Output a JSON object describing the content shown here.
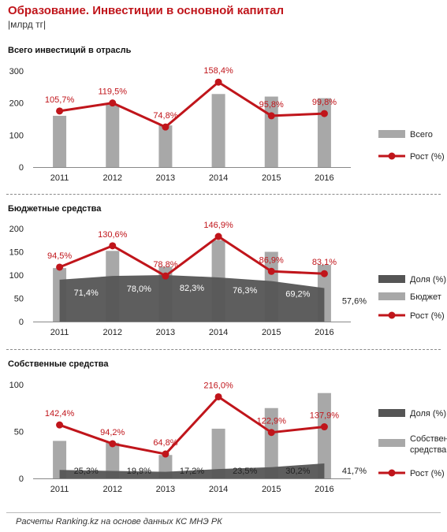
{
  "header": {
    "title": "Образование. Инвестиции в основной капитал",
    "unit": "|млрд тг|"
  },
  "source": "Расчеты Ranking.kz на основе данных КС МНЭ РК",
  "colors": {
    "bar": "#a8a8a8",
    "share_area": "#555555",
    "growth_line": "#c0151b"
  },
  "chart_data": [
    {
      "type": "bar",
      "title": "Всего инвестиций в отрасль",
      "categories": [
        "2011",
        "2012",
        "2013",
        "2014",
        "2015",
        "2016"
      ],
      "ylim": [
        0,
        300
      ],
      "yticks": [
        "0",
        "100",
        "200",
        "300"
      ],
      "series": [
        {
          "name": "Всего",
          "type": "bar",
          "values": [
            160,
            195,
            130,
            228,
            220,
            215
          ]
        },
        {
          "name": "Рост (%)",
          "type": "line",
          "values": [
            175,
            200,
            125,
            265,
            160,
            167
          ],
          "labels": [
            "105,7%",
            "119,5%",
            "74,8%",
            "158,4%",
            "95,8%",
            "99,8%"
          ]
        }
      ]
    },
    {
      "type": "bar",
      "title": "Бюджетные средства",
      "categories": [
        "2011",
        "2012",
        "2013",
        "2014",
        "2015",
        "2016"
      ],
      "ylim": [
        0,
        200
      ],
      "yticks": [
        "0",
        "50",
        "100",
        "150",
        "200"
      ],
      "series": [
        {
          "name": "Доля (%)",
          "type": "area",
          "values": [
            90,
            98,
            100,
            95,
            87,
            72
          ],
          "labels": [
            "71,4%",
            "78,0%",
            "82,3%",
            "76,3%",
            "69,2%",
            "57,6%"
          ]
        },
        {
          "name": "Бюджет",
          "type": "bar",
          "values": [
            115,
            152,
            118,
            175,
            150,
            122
          ]
        },
        {
          "name": "Рост (%)",
          "type": "line",
          "values": [
            117,
            163,
            98,
            183,
            108,
            103
          ],
          "labels": [
            "94,5%",
            "130,6%",
            "78,8%",
            "146,9%",
            "86,9%",
            "83,1%"
          ]
        }
      ]
    },
    {
      "type": "bar",
      "title": "Собственные средства",
      "categories": [
        "2011",
        "2012",
        "2013",
        "2014",
        "2015",
        "2016"
      ],
      "ylim": [
        0,
        100
      ],
      "yticks": [
        "0",
        "50",
        "100"
      ],
      "series": [
        {
          "name": "Доля (%)",
          "type": "area",
          "values": [
            9,
            8,
            7,
            10,
            12,
            16
          ],
          "labels": [
            "25,3%",
            "19,9%",
            "17,2%",
            "23,5%",
            "30,2%",
            "41,7%"
          ]
        },
        {
          "name": "Собственные средства",
          "type": "bar",
          "values": [
            40,
            38,
            25,
            53,
            75,
            91
          ]
        },
        {
          "name": "Рост (%)",
          "type": "line",
          "values": [
            57,
            37,
            26,
            87,
            49,
            55
          ],
          "labels": [
            "142,4%",
            "94,2%",
            "64,8%",
            "216,0%",
            "122,9%",
            "137,9%"
          ]
        }
      ]
    }
  ]
}
